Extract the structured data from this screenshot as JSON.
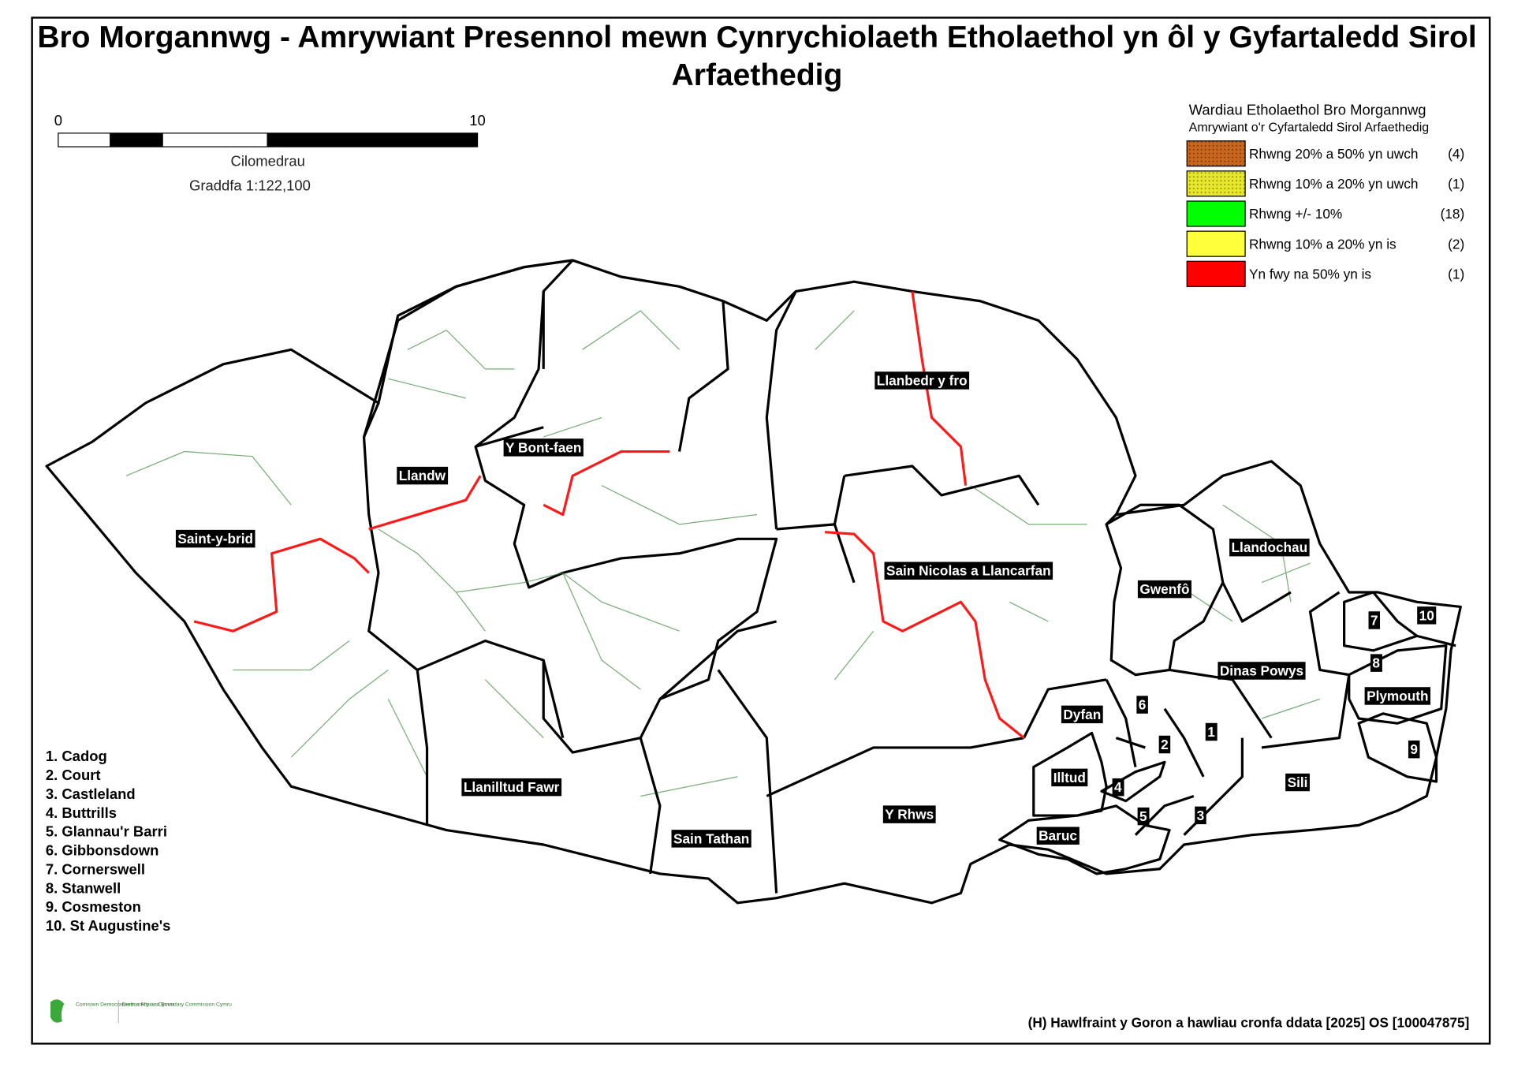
{
  "title": "Bro Morgannwg - Amrywiant Presennol mewn Cynrychiolaeth Etholaethol yn ôl y Gyfartaledd Sirol Arfaethedig",
  "scale_bar": {
    "start": "0",
    "end": "10",
    "unit": "Cilomedrau",
    "scale": "Graddfa 1:122,100"
  },
  "legend": {
    "title": "Wardiau Etholaethol Bro Morgannwg",
    "subtitle": "Amrywiant o'r Cyfartaledd Sirol Arfaethedig",
    "items": [
      {
        "label": "Rhwng 20% a 50% yn uwch",
        "count": "(4)",
        "color": "#c8661e",
        "pattern": "dots"
      },
      {
        "label": "Rhwng 10% a 20% yn uwch",
        "count": "(1)",
        "color": "#e6e62a",
        "pattern": "dots"
      },
      {
        "label": "Rhwng +/- 10%",
        "count": "(18)",
        "color": "#00ff00"
      },
      {
        "label": "Rhwng 10% a 20% yn is",
        "count": "(2)",
        "color": "#ffff3c"
      },
      {
        "label": "Yn fwy na 50% yn is",
        "count": "(1)",
        "color": "#ff0000"
      }
    ]
  },
  "wards": [
    "Llanbedr y fro",
    "Y Bont-faen",
    "Llandw",
    "Saint-y-brid",
    "Sain Nicolas a Llancarfan",
    "Llandochau",
    "Gwenfô",
    "Dinas Powys",
    "Plymouth",
    "Dyfan",
    "Illtud",
    "Sili",
    "Llanilltud Fawr",
    "Y Rhws",
    "Sain Tathan",
    "Baruc",
    "6",
    "1",
    "2",
    "4",
    "5",
    "3",
    "7",
    "10",
    "8",
    "9"
  ],
  "key_list": [
    "1. Cadog",
    "2. Court",
    "3. Castleland",
    "4. Buttrills",
    "5. Glannau'r Barri",
    "6. Gibbonsdown",
    "7. Cornerswell",
    "8. Stanwell",
    "9. Cosmeston",
    "10. St Augustine's"
  ],
  "logo": [
    "Comisiwn Democratiaeth a Ffiniau Cymru",
    "Democracy and Boundary Commission Cymru"
  ],
  "copyright": "(H) Hawlfraint y Goron a hawliau cronfa ddata [2025] OS [100047875]"
}
